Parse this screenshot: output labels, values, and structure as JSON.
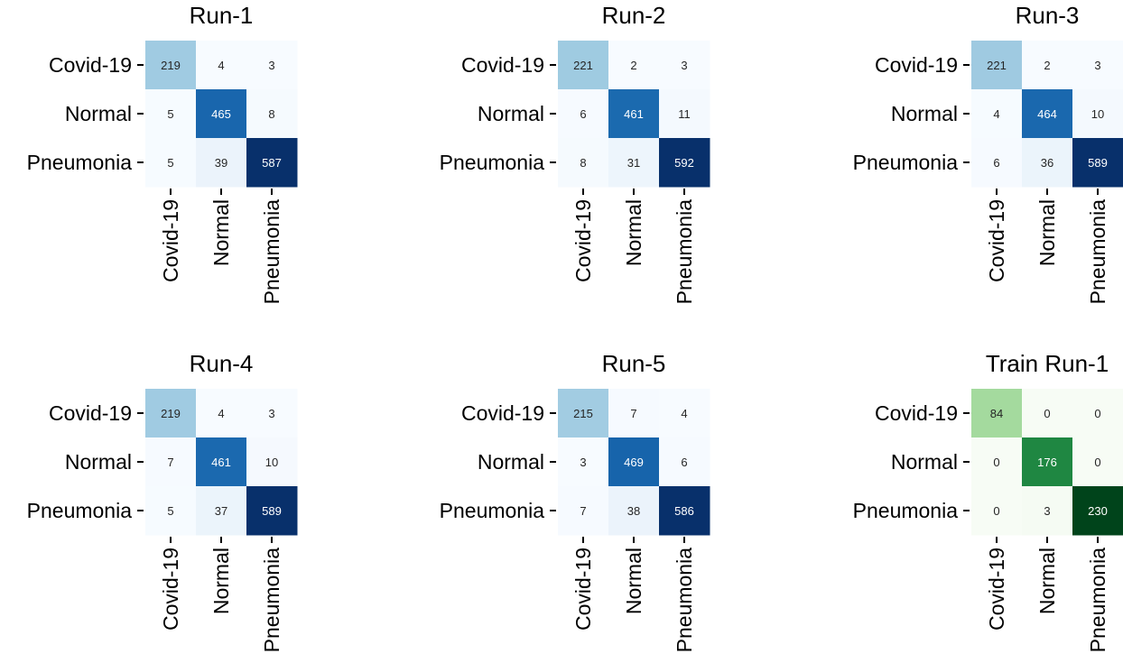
{
  "chart_data": [
    {
      "type": "heatmap",
      "title": "Run-1",
      "colormap": "blues",
      "rows": [
        "Covid-19",
        "Normal",
        "Pneumonia"
      ],
      "cols": [
        "Covid-19",
        "Normal",
        "Pneumonia"
      ],
      "values": [
        [
          219,
          4,
          3
        ],
        [
          5,
          465,
          8
        ],
        [
          5,
          39,
          587
        ]
      ]
    },
    {
      "type": "heatmap",
      "title": "Run-2",
      "colormap": "blues",
      "rows": [
        "Covid-19",
        "Normal",
        "Pneumonia"
      ],
      "cols": [
        "Covid-19",
        "Normal",
        "Pneumonia"
      ],
      "values": [
        [
          221,
          2,
          3
        ],
        [
          6,
          461,
          11
        ],
        [
          8,
          31,
          592
        ]
      ]
    },
    {
      "type": "heatmap",
      "title": "Run-3",
      "colormap": "blues",
      "rows": [
        "Covid-19",
        "Normal",
        "Pneumonia"
      ],
      "cols": [
        "Covid-19",
        "Normal",
        "Pneumonia"
      ],
      "values": [
        [
          221,
          2,
          3
        ],
        [
          4,
          464,
          10
        ],
        [
          6,
          36,
          589
        ]
      ]
    },
    {
      "type": "heatmap",
      "title": "Run-4",
      "colormap": "blues",
      "rows": [
        "Covid-19",
        "Normal",
        "Pneumonia"
      ],
      "cols": [
        "Covid-19",
        "Normal",
        "Pneumonia"
      ],
      "values": [
        [
          219,
          4,
          3
        ],
        [
          7,
          461,
          10
        ],
        [
          5,
          37,
          589
        ]
      ]
    },
    {
      "type": "heatmap",
      "title": "Run-5",
      "colormap": "blues",
      "rows": [
        "Covid-19",
        "Normal",
        "Pneumonia"
      ],
      "cols": [
        "Covid-19",
        "Normal",
        "Pneumonia"
      ],
      "values": [
        [
          215,
          7,
          4
        ],
        [
          3,
          469,
          6
        ],
        [
          7,
          38,
          586
        ]
      ]
    },
    {
      "type": "heatmap",
      "title": "Train Run-1",
      "colormap": "greens",
      "rows": [
        "Covid-19",
        "Normal",
        "Pneumonia"
      ],
      "cols": [
        "Covid-19",
        "Normal",
        "Pneumonia"
      ],
      "values": [
        [
          84,
          0,
          0
        ],
        [
          0,
          176,
          0
        ],
        [
          0,
          3,
          230
        ]
      ]
    }
  ]
}
